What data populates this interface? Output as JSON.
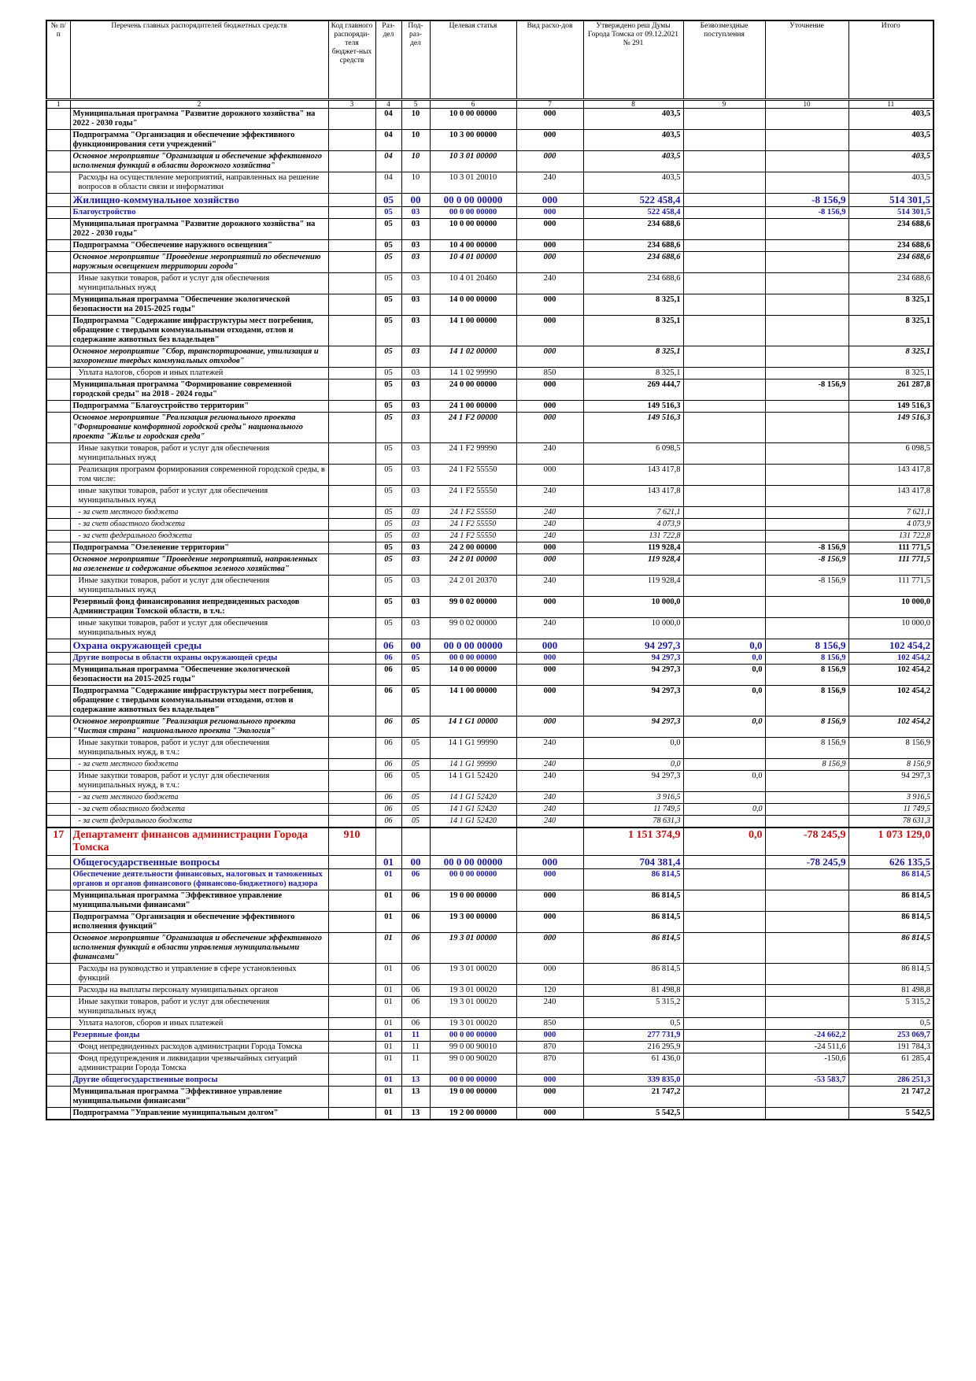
{
  "table": {
    "header": [
      "№ п/п",
      "Перечень главных распорядителей бюджетных средств",
      "Код главного распоряди-теля бюджет-ных средств",
      "Раз-дел",
      "Под-раз-дел",
      "Целевая статья",
      "Вид расхо-дов",
      "Утверждено реш Думы Города Томска от 09.12.2021 № 291",
      "Безвозмездные поступления",
      "Уточнение",
      "Итого"
    ],
    "column_numbers": [
      "1",
      "2",
      "3",
      "4",
      "5",
      "6",
      "7",
      "8",
      "9",
      "10",
      "11"
    ],
    "rows": [
      {
        "style": "bold",
        "cells": [
          null,
          "Муниципальная программа \"Развитие дорожного хозяйства\" на 2022 - 2030 годы\"",
          null,
          "04",
          "10",
          "10 0 00 00000",
          "000",
          "403,5",
          null,
          null,
          "403,5"
        ]
      },
      {
        "style": "bold",
        "cells": [
          null,
          "Подпрограмма \"Организация и обеспечение эффективного функционирования сети учреждений\"",
          null,
          "04",
          "10",
          "10 3 00 00000",
          "000",
          "403,5",
          null,
          null,
          "403,5"
        ]
      },
      {
        "style": "italic",
        "cells": [
          null,
          "Основное мероприятие \"Организация и обеспечение эффективного исполнения функций в области дорожного хозяйства\"",
          null,
          "04",
          "10",
          "10 3 01 00000",
          "000",
          "403,5",
          null,
          null,
          "403,5"
        ]
      },
      {
        "style": "normal",
        "cells": [
          null,
          "Расходы на осуществление мероприятий, направленных на решение вопросов в области связи и информатики",
          null,
          "04",
          "10",
          "10 3 01 20010",
          "240",
          "403,5",
          null,
          null,
          "403,5"
        ]
      },
      {
        "style": "section",
        "cells": [
          null,
          "Жилищно-коммунальное хозяйство",
          null,
          "05",
          "00",
          "00 0 00 00000",
          "000",
          "522 458,4",
          null,
          "-8 156,9",
          "514 301,5"
        ]
      },
      {
        "style": "subsection",
        "cells": [
          null,
          "Благоустройство",
          null,
          "05",
          "03",
          "00 0 00 00000",
          "000",
          "522 458,4",
          null,
          "-8 156,9",
          "514 301,5"
        ]
      },
      {
        "style": "bold",
        "cells": [
          null,
          "Муниципальная программа \"Развитие дорожного хозяйства\" на 2022 - 2030 годы\"",
          null,
          "05",
          "03",
          "10 0 00 00000",
          "000",
          "234 688,6",
          null,
          null,
          "234 688,6"
        ]
      },
      {
        "style": "bold",
        "cells": [
          null,
          "Подпрограмма \"Обеспечение наружного освещения\"",
          null,
          "05",
          "03",
          "10 4 00 00000",
          "000",
          "234 688,6",
          null,
          null,
          "234 688,6"
        ]
      },
      {
        "style": "italic",
        "cells": [
          null,
          "Основное мероприятие \"Проведение мероприятий по обеспечению наружным освещением территории города\"",
          null,
          "05",
          "03",
          "10 4 01 00000",
          "000",
          "234 688,6",
          null,
          null,
          "234 688,6"
        ]
      },
      {
        "style": "normal",
        "cells": [
          null,
          "Иные закупки товаров, работ и услуг для обеспечения муниципальных нужд",
          null,
          "05",
          "03",
          "10 4 01 20460",
          "240",
          "234 688,6",
          null,
          null,
          "234 688,6"
        ]
      },
      {
        "style": "bold",
        "cells": [
          null,
          "Муниципальная программа \"Обеспечение экологической безопасности на 2015-2025 годы\"",
          null,
          "05",
          "03",
          "14 0 00 00000",
          "000",
          "8 325,1",
          null,
          null,
          "8 325,1"
        ]
      },
      {
        "style": "bold",
        "cells": [
          null,
          "Подпрограмма \"Содержание инфраструктуры мест погребения, обращение с твердыми коммунальными отходами, отлов и содержание животных без владельцев\"",
          null,
          "05",
          "03",
          "14 1 00 00000",
          "000",
          "8 325,1",
          null,
          null,
          "8 325,1"
        ]
      },
      {
        "style": "italic",
        "cells": [
          null,
          "Основное мероприятие \"Сбор, транспортирование, утилизация и захоронение твердых коммунальных отходов\"",
          null,
          "05",
          "03",
          "14 1 02 00000",
          "000",
          "8 325,1",
          null,
          null,
          "8 325,1"
        ]
      },
      {
        "style": "normal",
        "cells": [
          null,
          "Уплата налогов, сборов и иных платежей",
          null,
          "05",
          "03",
          "14 1 02 99990",
          "850",
          "8 325,1",
          null,
          null,
          "8 325,1"
        ]
      },
      {
        "style": "bold",
        "cells": [
          null,
          "Муниципальная программа \"Формирование современной городской среды\" на 2018 - 2024 годы\"",
          null,
          "05",
          "03",
          "24 0 00 00000",
          "000",
          "269 444,7",
          null,
          "-8 156,9",
          "261 287,8"
        ]
      },
      {
        "style": "bold",
        "cells": [
          null,
          "Подпрограмма \"Благоустройство территории\"",
          null,
          "05",
          "03",
          "24 1 00 00000",
          "000",
          "149 516,3",
          null,
          null,
          "149 516,3"
        ]
      },
      {
        "style": "italic",
        "cells": [
          null,
          "Основное мероприятие \"Реализация регионального проекта \"Формирование комфортной городской среды\" национального проекта \"Жилье и городская среда\"",
          null,
          "05",
          "03",
          "24 1 F2 00000",
          "000",
          "149 516,3",
          null,
          null,
          "149 516,3"
        ]
      },
      {
        "style": "normal",
        "cells": [
          null,
          "Иные закупки товаров, работ и услуг для обеспечения муниципальных нужд",
          null,
          "05",
          "03",
          "24 1 F2 99990",
          "240",
          "6 098,5",
          null,
          null,
          "6 098,5"
        ]
      },
      {
        "style": "normal",
        "cells": [
          null,
          "Реализация программ формирования современной городской среды, в том числе:",
          null,
          "05",
          "03",
          "24 1 F2 55550",
          "000",
          "143 417,8",
          null,
          null,
          "143 417,8"
        ]
      },
      {
        "style": "normal",
        "cells": [
          null,
          "иные закупки товаров, работ и услуг для обеспечения муниципальных нужд",
          null,
          "05",
          "03",
          "24 1 F2 55550",
          "240",
          "143 417,8",
          null,
          null,
          "143 417,8"
        ]
      },
      {
        "style": "italic-small",
        "cells": [
          null,
          "- за счет местного бюджета",
          null,
          "05",
          "03",
          "24 1 F2 55550",
          "240",
          "7 621,1",
          null,
          null,
          "7 621,1"
        ]
      },
      {
        "style": "italic-small",
        "cells": [
          null,
          "- за счет областного бюджета",
          null,
          "05",
          "03",
          "24 1 F2 55550",
          "240",
          "4 073,9",
          null,
          null,
          "4 073,9"
        ]
      },
      {
        "style": "italic-small",
        "cells": [
          null,
          "- за счет федерального бюджета",
          null,
          "05",
          "03",
          "24 1 F2 55550",
          "240",
          "131 722,8",
          null,
          null,
          "131 722,8"
        ]
      },
      {
        "style": "bold",
        "cells": [
          null,
          "Подпрограмма \"Озеленение территории\"",
          null,
          "05",
          "03",
          "24 2 00 00000",
          "000",
          "119 928,4",
          null,
          "-8 156,9",
          "111 771,5"
        ]
      },
      {
        "style": "italic",
        "cells": [
          null,
          "Основное мероприятие \"Проведение мероприятий, направленных на озеленение и содержание объектов зеленого хозяйства\"",
          null,
          "05",
          "03",
          "24 2 01 00000",
          "000",
          "119 928,4",
          null,
          "-8 156,9",
          "111 771,5"
        ]
      },
      {
        "style": "normal",
        "cells": [
          null,
          "Иные закупки товаров, работ и услуг для обеспечения муниципальных нужд",
          null,
          "05",
          "03",
          "24 2 01 20370",
          "240",
          "119 928,4",
          null,
          "-8 156,9",
          "111 771,5"
        ]
      },
      {
        "style": "bold",
        "cells": [
          null,
          "Резервный фонд финансирования непредвиденных расходов Администрации Томской области, в т.ч.:",
          null,
          "05",
          "03",
          "99 0 02 00000",
          "000",
          "10 000,0",
          null,
          null,
          "10 000,0"
        ]
      },
      {
        "style": "normal",
        "cells": [
          null,
          "иные закупки товаров, работ и услуг для обеспечения муниципальных нужд",
          null,
          "05",
          "03",
          "99 0 02 00000",
          "240",
          "10 000,0",
          null,
          null,
          "10 000,0"
        ]
      },
      {
        "style": "section",
        "cells": [
          null,
          "Охрана окружающей среды",
          null,
          "06",
          "00",
          "00 0 00 00000",
          "000",
          "94 297,3",
          "0,0",
          "8 156,9",
          "102 454,2"
        ]
      },
      {
        "style": "subsection",
        "cells": [
          null,
          "Другие вопросы в области охраны окружающей среды",
          null,
          "06",
          "05",
          "00 0 00 00000",
          "000",
          "94 297,3",
          "0,0",
          "8 156,9",
          "102 454,2"
        ]
      },
      {
        "style": "bold",
        "cells": [
          null,
          "Муниципальная программа \"Обеспечение экологической безопасности на 2015-2025 годы\"",
          null,
          "06",
          "05",
          "14 0 00 00000",
          "000",
          "94 297,3",
          "0,0",
          "8 156,9",
          "102 454,2"
        ]
      },
      {
        "style": "bold",
        "cells": [
          null,
          "Подпрограмма \"Содержание инфраструктуры мест погребения, обращение с твердыми коммунальными отходами, отлов и содержание животных без владельцев\"",
          null,
          "06",
          "05",
          "14 1 00 00000",
          "000",
          "94 297,3",
          "0,0",
          "8 156,9",
          "102 454,2"
        ]
      },
      {
        "style": "italic",
        "cells": [
          null,
          "Основное мероприятие \"Реализация регионального проекта \"Чистая страна\" национального проекта \"Экология\"",
          null,
          "06",
          "05",
          "14 1 G1 00000",
          "000",
          "94 297,3",
          "0,0",
          "8 156,9",
          "102 454,2"
        ]
      },
      {
        "style": "normal",
        "cells": [
          null,
          "Иные закупки товаров, работ и услуг для обеспечения муниципальных нужд, в т.ч.:",
          null,
          "06",
          "05",
          "14 1 G1 99990",
          "240",
          "0,0",
          null,
          "8 156,9",
          "8 156,9"
        ]
      },
      {
        "style": "italic-small",
        "cells": [
          null,
          "- за счет местного бюджета",
          null,
          "06",
          "05",
          "14 1 G1 99990",
          "240",
          "0,0",
          null,
          "8 156,9",
          "8 156,9"
        ]
      },
      {
        "style": "normal",
        "cells": [
          null,
          "Иные закупки товаров, работ и услуг для обеспечения муниципальных нужд, в т.ч.:",
          null,
          "06",
          "05",
          "14 1 G1 52420",
          "240",
          "94 297,3",
          "0,0",
          null,
          "94 297,3"
        ]
      },
      {
        "style": "italic-small",
        "cells": [
          null,
          "- за счет местного бюджета",
          null,
          "06",
          "05",
          "14 1 G1 52420",
          "240",
          "3 916,5",
          null,
          null,
          "3 916,5"
        ]
      },
      {
        "style": "italic-small",
        "cells": [
          null,
          "- за счет областного бюджета",
          null,
          "06",
          "05",
          "14 1 G1 52420",
          "240",
          "11 749,5",
          "0,0",
          null,
          "11 749,5"
        ]
      },
      {
        "style": "italic-small",
        "cells": [
          null,
          "- за счет федерального бюджета",
          null,
          "06",
          "05",
          "14 1 G1 52420",
          "240",
          "78 631,3",
          null,
          null,
          "78 631,3"
        ]
      },
      {
        "style": "department",
        "cells": [
          "17",
          "Департамент финансов администрации Города Томска",
          "910",
          null,
          null,
          null,
          null,
          "1 151 374,9",
          "0,0",
          "-78 245,9",
          "1 073 129,0"
        ]
      },
      {
        "style": "section",
        "cells": [
          null,
          "Общегосударственные вопросы",
          null,
          "01",
          "00",
          "00 0 00 00000",
          "000",
          "704 381,4",
          null,
          "-78 245,9",
          "626 135,5"
        ]
      },
      {
        "style": "subsection",
        "cells": [
          null,
          "Обеспечение деятельности финансовых, налоговых и таможенных органов и органов финансового (финансово-бюджетного) надзора",
          null,
          "01",
          "06",
          "00 0 00 00000",
          "000",
          "86 814,5",
          null,
          null,
          "86 814,5"
        ]
      },
      {
        "style": "bold",
        "cells": [
          null,
          "Муниципальная программа \"Эффективное управление муниципальными финансами\"",
          null,
          "01",
          "06",
          "19 0 00 00000",
          "000",
          "86 814,5",
          null,
          null,
          "86 814,5"
        ]
      },
      {
        "style": "bold",
        "cells": [
          null,
          "Подпрограмма \"Организация и обеспечение эффективного исполнения функций\"",
          null,
          "01",
          "06",
          "19 3 00 00000",
          "000",
          "86 814,5",
          null,
          null,
          "86 814,5"
        ]
      },
      {
        "style": "italic",
        "cells": [
          null,
          "Основное мероприятие \"Организация и обеспечение эффективного исполнения функций в области управления муниципальными финансами\"",
          null,
          "01",
          "06",
          "19 3 01 00000",
          "000",
          "86 814,5",
          null,
          null,
          "86 814,5"
        ]
      },
      {
        "style": "normal",
        "cells": [
          null,
          "Расходы на руководство и управление в сфере установленных функций",
          null,
          "01",
          "06",
          "19 3 01 00020",
          "000",
          "86 814,5",
          null,
          null,
          "86 814,5"
        ]
      },
      {
        "style": "normal",
        "cells": [
          null,
          "Расходы на выплаты персоналу муниципальных органов",
          null,
          "01",
          "06",
          "19 3 01 00020",
          "120",
          "81 498,8",
          null,
          null,
          "81 498,8"
        ]
      },
      {
        "style": "normal",
        "cells": [
          null,
          "Иные закупки товаров, работ и услуг для обеспечения муниципальных нужд",
          null,
          "01",
          "06",
          "19 3 01 00020",
          "240",
          "5 315,2",
          null,
          null,
          "5 315,2"
        ]
      },
      {
        "style": "normal",
        "cells": [
          null,
          "Уплата налогов, сборов и иных платежей",
          null,
          "01",
          "06",
          "19 3 01 00020",
          "850",
          "0,5",
          null,
          null,
          "0,5"
        ]
      },
      {
        "style": "subsection",
        "cells": [
          null,
          "Резервные фонды",
          null,
          "01",
          "11",
          "00 0 00 00000",
          "000",
          "277 731,9",
          null,
          "-24 662,2",
          "253 069,7"
        ]
      },
      {
        "style": "normal",
        "cells": [
          null,
          "Фонд непредвиденных расходов администрации Города Томска",
          null,
          "01",
          "11",
          "99 0 00 90010",
          "870",
          "216 295,9",
          null,
          "-24 511,6",
          "191 784,3"
        ]
      },
      {
        "style": "normal",
        "cells": [
          null,
          "Фонд предупреждения и ликвидации чрезвычайных ситуаций администрации Города Томска",
          null,
          "01",
          "11",
          "99 0 00 90020",
          "870",
          "61 436,0",
          null,
          "-150,6",
          "61 285,4"
        ]
      },
      {
        "style": "subsection",
        "cells": [
          null,
          "Другие общегосударственные вопросы",
          null,
          "01",
          "13",
          "00 0 00 00000",
          "000",
          "339 835,0",
          null,
          "-53 583,7",
          "286 251,3"
        ]
      },
      {
        "style": "bold",
        "cells": [
          null,
          "Муниципальная программа \"Эффективное управление муниципальными финансами\"",
          null,
          "01",
          "13",
          "19 0 00 00000",
          "000",
          "21 747,2",
          null,
          null,
          "21 747,2"
        ]
      },
      {
        "style": "bold",
        "cells": [
          null,
          "Подпрограмма \"Управление муниципальным долгом\"",
          null,
          "01",
          "13",
          "19 2 00 00000",
          "000",
          "5 542,5",
          null,
          null,
          "5 542,5"
        ]
      }
    ]
  }
}
